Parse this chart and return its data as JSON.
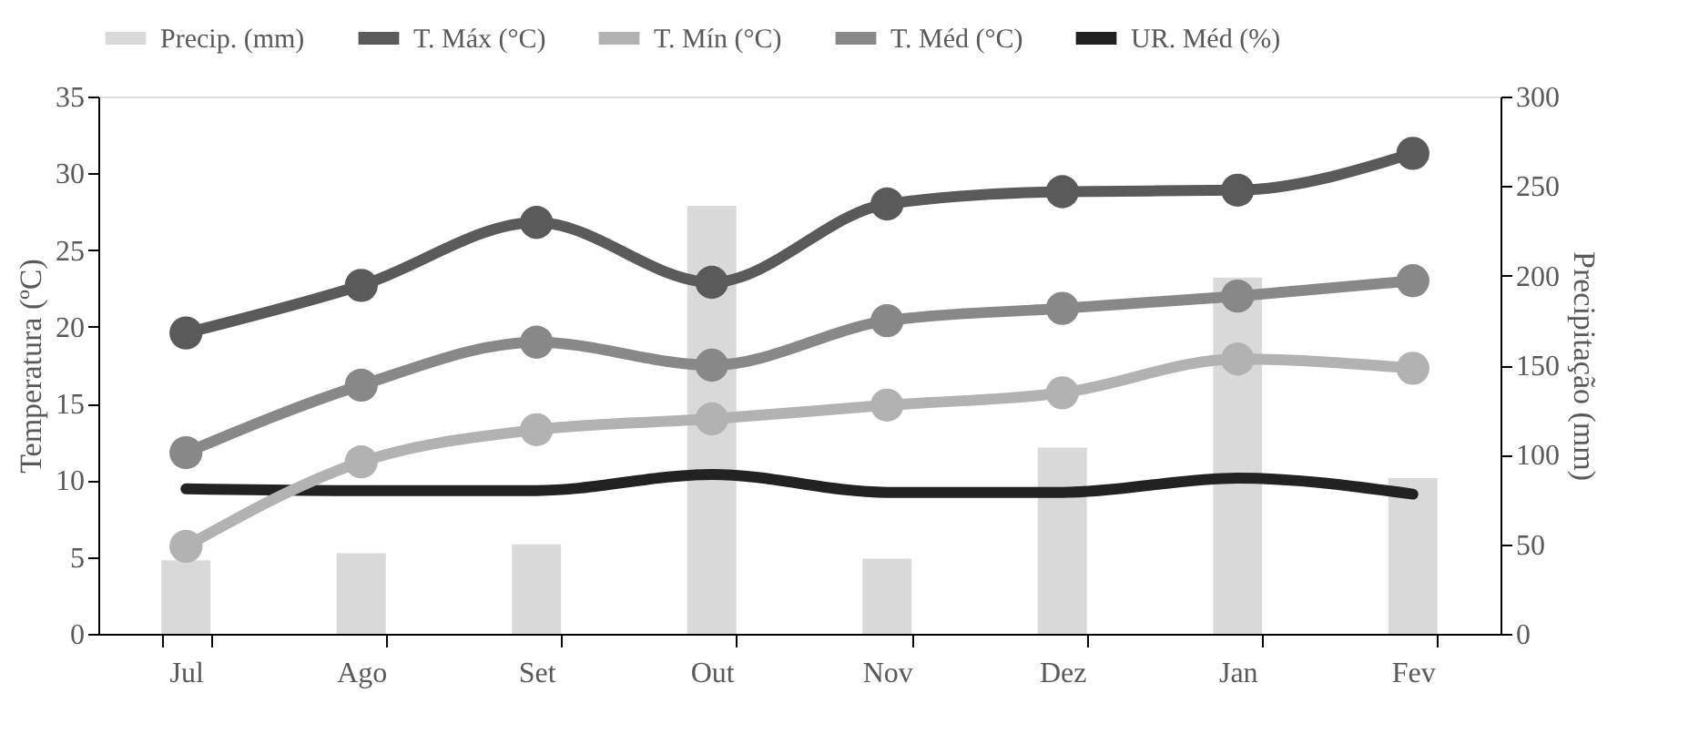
{
  "chart_data": {
    "type": "line",
    "categories": [
      "Jul",
      "Ago",
      "Set",
      "Out",
      "Nov",
      "Dez",
      "Jan",
      "Fev"
    ],
    "series": [
      {
        "name": "Precip. (mm)",
        "type": "bar",
        "axis": "y2",
        "color": "#d9d9d9",
        "values": [
          41,
          45,
          50,
          239,
          42,
          104,
          199,
          87
        ]
      },
      {
        "name": "T. Máx (°C)",
        "color": "#5a5a5a",
        "values": [
          19.6,
          22.7,
          26.8,
          22.9,
          28.0,
          28.8,
          28.9,
          31.3
        ]
      },
      {
        "name": "T. Mín (°C)",
        "color": "#b2b2b2",
        "values": [
          5.7,
          11.2,
          13.3,
          14.0,
          14.9,
          15.7,
          17.9,
          17.3
        ]
      },
      {
        "name": "T. Méd (°C)",
        "color": "#888888",
        "values": [
          11.8,
          16.2,
          19.0,
          17.5,
          20.4,
          21.2,
          22.0,
          23.0
        ]
      },
      {
        "name": "UR. Méd (%)",
        "axis": "y2",
        "marker": "none",
        "color": "#222222",
        "values": [
          81,
          80,
          80,
          89,
          79,
          79,
          87,
          78
        ]
      }
    ],
    "ylabel": "Temperatura (ºC)",
    "y2label": "Precipitação (mm)",
    "ylim": [
      0,
      35
    ],
    "yticks": [
      0,
      5,
      10,
      15,
      20,
      25,
      30,
      35
    ],
    "y2lim": [
      0,
      300
    ],
    "y2ticks": [
      0,
      50,
      100,
      150,
      200,
      250,
      300
    ],
    "marker": "circle",
    "line_style": "solid",
    "grid": false,
    "legend": "top"
  }
}
